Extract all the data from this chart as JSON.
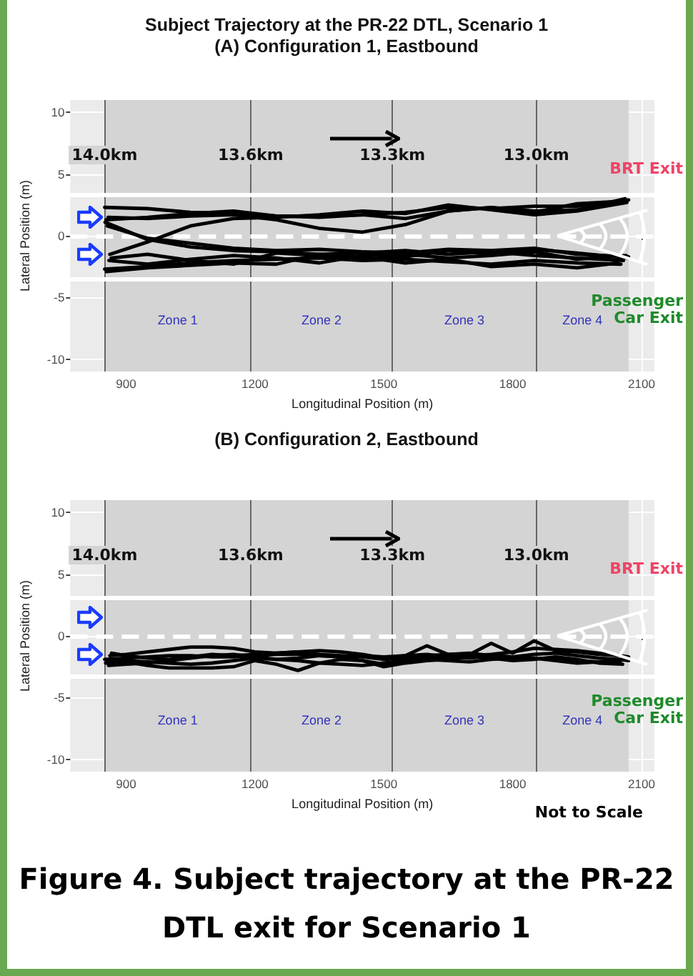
{
  "chart_data": [
    {
      "type": "line",
      "title": "Subject Trajectory at the PR-22 DTL, Scenario 1",
      "subtitle": "(A) Configuration 1, Eastbound",
      "xlabel": "Longitudinal Position (m)",
      "ylabel": "Lateral Position (m)",
      "series": [
        {
          "color": "#000000",
          "x": [
            850,
            950,
            1050,
            1150,
            1250,
            1350,
            1450,
            1550,
            1650,
            1750,
            1850,
            1950,
            2070
          ],
          "values": [
            2.3,
            2.2,
            1.9,
            1.8,
            1.6,
            1.6,
            1.7,
            1.9,
            2.3,
            2.2,
            2.4,
            2.4,
            2.9
          ]
        },
        {
          "color": "#000000",
          "x": [
            853,
            950,
            1050,
            1150,
            1250,
            1350,
            1450,
            1550,
            1650,
            1750,
            1850,
            1950,
            2062
          ],
          "values": [
            1.3,
            1.5,
            1.8,
            2.0,
            1.6,
            1.5,
            1.7,
            1.4,
            2.0,
            2.3,
            2.0,
            2.1,
            3.0
          ]
        },
        {
          "color": "#000000",
          "x": [
            858,
            950,
            1050,
            1150,
            1250,
            1350,
            1450,
            1550,
            1650,
            1750,
            1850,
            1950,
            2054
          ],
          "values": [
            1.5,
            1.4,
            1.6,
            1.7,
            1.3,
            0.6,
            0.3,
            0.9,
            2.0,
            2.3,
            1.9,
            2.6,
            2.8
          ]
        },
        {
          "color": "#000000",
          "x": [
            862,
            950,
            1050,
            1150,
            1250,
            1350,
            1450,
            1550,
            1650,
            1750,
            1850,
            1950,
            2066
          ],
          "values": [
            -1.5,
            -0.5,
            0.8,
            1.4,
            1.5,
            1.7,
            2.0,
            1.8,
            2.5,
            2.1,
            1.7,
            2.0,
            2.7
          ]
        },
        {
          "color": "#000000",
          "x": [
            851,
            950,
            1050,
            1150,
            1250,
            1350,
            1450,
            1550,
            1650,
            1750,
            1850,
            1950,
            2058
          ],
          "values": [
            1.1,
            -0.3,
            -0.9,
            -1.2,
            -1.3,
            -1.5,
            -1.4,
            -1.2,
            -1.5,
            -1.3,
            -1.6,
            -1.8,
            -2.0
          ]
        },
        {
          "color": "#000000",
          "x": [
            856,
            950,
            1050,
            1150,
            1250,
            1350,
            1450,
            1550,
            1650,
            1750,
            1850,
            1950,
            2070
          ],
          "values": [
            0.8,
            -0.2,
            -0.6,
            -1.0,
            -1.2,
            -1.1,
            -1.3,
            -1.4,
            -1.1,
            -1.2,
            -1.0,
            -1.5,
            -1.7
          ]
        },
        {
          "color": "#000000",
          "x": [
            850,
            950,
            1050,
            1150,
            1250,
            1350,
            1450,
            1550,
            1650,
            1750,
            1850,
            1950,
            2052
          ],
          "values": [
            -2.7,
            -2.5,
            -2.2,
            -2.0,
            -1.9,
            -1.8,
            -2.0,
            -1.9,
            -2.1,
            -2.3,
            -2.0,
            -2.2,
            -2.3
          ]
        },
        {
          "color": "#000000",
          "x": [
            860,
            950,
            1050,
            1150,
            1250,
            1350,
            1450,
            1550,
            1650,
            1750,
            1850,
            1950,
            2064
          ],
          "values": [
            -2.0,
            -2.3,
            -1.9,
            -1.6,
            -1.8,
            -2.2,
            -1.6,
            -1.5,
            -1.8,
            -1.6,
            -1.3,
            -1.9,
            -1.6
          ]
        },
        {
          "color": "#000000",
          "x": [
            854,
            950,
            1050,
            1150,
            1250,
            1350,
            1450,
            1550,
            1650,
            1750,
            1850,
            1950,
            2045
          ],
          "values": [
            -2.9,
            -2.6,
            -2.4,
            -2.2,
            -2.3,
            -1.5,
            -1.7,
            -2.2,
            -1.9,
            -2.5,
            -2.3,
            -2.6,
            -2.2
          ]
        },
        {
          "color": "#000000",
          "x": [
            865,
            950,
            1050,
            1150,
            1250,
            1350,
            1450,
            1550,
            1650,
            1750,
            1850,
            1950,
            2068
          ],
          "values": [
            -1.8,
            -1.5,
            -2.0,
            -2.3,
            -1.4,
            -1.6,
            -1.9,
            -1.7,
            -1.2,
            -1.5,
            -1.1,
            -1.4,
            -1.8
          ]
        }
      ],
      "xlim": [
        770,
        2130
      ],
      "xticks": [
        900,
        1200,
        1500,
        1800,
        2100
      ],
      "ylim": [
        -11,
        11
      ],
      "yticks": [
        -10,
        -5,
        0,
        5,
        10
      ],
      "grid": true,
      "marker": "none",
      "line_style": "solid",
      "bands": [
        {
          "axis": "x",
          "from": 850,
          "to": 1190,
          "label": "Zone 1",
          "color": "#d4d4d4"
        },
        {
          "axis": "x",
          "from": 1190,
          "to": 1520,
          "label": "Zone 2",
          "color": "#d4d4d4"
        },
        {
          "axis": "x",
          "from": 1520,
          "to": 1855,
          "label": "Zone 3",
          "color": "#d4d4d4"
        },
        {
          "axis": "x",
          "from": 1855,
          "to": 2070,
          "label": "Zone 4",
          "color": "#d4d4d4"
        }
      ],
      "ref_lines": [
        {
          "axis": "x",
          "value": 850,
          "label": "14.0km",
          "color": "#666666",
          "line_style": "solid"
        },
        {
          "axis": "x",
          "value": 1190,
          "label": "13.6km",
          "color": "#666666",
          "line_style": "solid"
        },
        {
          "axis": "x",
          "value": 1520,
          "label": "13.3km",
          "color": "#666666",
          "line_style": "solid"
        },
        {
          "axis": "x",
          "value": 1855,
          "label": "13.0km",
          "color": "#666666",
          "line_style": "solid"
        },
        {
          "axis": "y",
          "value": 3.3,
          "color": "#ffffff",
          "line_style": "solid"
        },
        {
          "axis": "y",
          "value": 0,
          "color": "#ffffff",
          "line_style": "dashed"
        },
        {
          "axis": "y",
          "value": -3.5,
          "color": "#ffffff",
          "line_style": "solid"
        }
      ],
      "annotations": [
        "BRT Exit",
        "Passenger Car Exit"
      ]
    },
    {
      "type": "line",
      "title": "(B) Configuration 2, Eastbound",
      "xlabel": "Longitudinal Position (m)",
      "ylabel": "Lateral Position (m)",
      "series": [
        {
          "color": "#000000",
          "x": [
            850,
            900,
            950,
            1000,
            1050,
            1100,
            1150,
            1200,
            1250,
            1300,
            1350,
            1400,
            1450,
            1500,
            1550,
            1600,
            1650,
            1700,
            1750,
            1800,
            1850,
            1900,
            1950,
            2000,
            2050,
            2070
          ],
          "values": [
            -1.9,
            -1.8,
            -1.7,
            -1.6,
            -1.6,
            -1.7,
            -1.7,
            -1.6,
            -1.5,
            -1.5,
            -1.6,
            -1.7,
            -1.6,
            -1.7,
            -1.6,
            -0.8,
            -1.5,
            -1.5,
            -0.6,
            -1.4,
            -0.4,
            -1.2,
            -1.3,
            -1.5,
            -1.6,
            -1.7
          ]
        },
        {
          "color": "#000000",
          "x": [
            856,
            900,
            950,
            1000,
            1050,
            1100,
            1150,
            1200,
            1250,
            1300,
            1350,
            1400,
            1450,
            1500,
            1550,
            1600,
            1650,
            1700,
            1750,
            1800,
            1850,
            1900,
            1950,
            2000,
            2050,
            2062
          ],
          "values": [
            -2.0,
            -2.1,
            -2.4,
            -2.6,
            -2.6,
            -2.6,
            -2.5,
            -2.0,
            -2.3,
            -2.8,
            -2.2,
            -1.9,
            -2.0,
            -2.3,
            -1.9,
            -1.8,
            -1.7,
            -1.8,
            -1.6,
            -1.7,
            -1.8,
            -1.9,
            -2.0,
            -2.1,
            -2.0,
            -1.9
          ]
        },
        {
          "color": "#000000",
          "x": [
            862,
            900,
            950,
            1000,
            1050,
            1100,
            1150,
            1200,
            1250,
            1300,
            1350,
            1400,
            1450,
            1500,
            1550,
            1600,
            1650,
            1700,
            1750,
            1800,
            1850,
            1900,
            1950,
            2000,
            2050,
            2066
          ],
          "values": [
            -1.6,
            -1.5,
            -1.3,
            -1.1,
            -0.9,
            -0.9,
            -1.0,
            -1.3,
            -1.4,
            -1.3,
            -1.2,
            -1.3,
            -1.5,
            -1.8,
            -1.6,
            -1.5,
            -1.7,
            -1.6,
            -1.5,
            -1.3,
            -1.0,
            -1.1,
            -1.2,
            -1.4,
            -1.6,
            -1.8
          ]
        },
        {
          "color": "#000000",
          "x": [
            852,
            900,
            950,
            1000,
            1050,
            1100,
            1150,
            1200,
            1250,
            1300,
            1350,
            1400,
            1450,
            1500,
            1550,
            1600,
            1650,
            1700,
            1750,
            1800,
            1850,
            1900,
            1950,
            2000,
            2040
          ],
          "values": [
            -2.2,
            -2.0,
            -2.1,
            -2.2,
            -2.3,
            -2.2,
            -2.0,
            -1.8,
            -1.9,
            -2.0,
            -2.2,
            -2.3,
            -2.4,
            -2.2,
            -2.0,
            -1.9,
            -2.0,
            -2.1,
            -1.9,
            -1.8,
            -1.8,
            -2.0,
            -2.2,
            -2.1,
            -2.2
          ]
        },
        {
          "color": "#000000",
          "x": [
            866,
            900,
            950,
            1000,
            1050,
            1100,
            1150,
            1200,
            1250,
            1300,
            1350,
            1400,
            1450,
            1500,
            1550,
            1600,
            1650,
            1700,
            1750,
            1800,
            1850,
            1900,
            1950,
            2000,
            2050,
            2070
          ],
          "values": [
            -1.4,
            -1.6,
            -1.8,
            -1.9,
            -1.7,
            -1.5,
            -1.6,
            -1.5,
            -1.4,
            -1.3,
            -1.5,
            -1.6,
            -1.7,
            -1.9,
            -1.8,
            -1.6,
            -1.5,
            -1.4,
            -1.6,
            -1.7,
            -1.5,
            -1.4,
            -1.6,
            -1.8,
            -1.9,
            -2.0
          ]
        },
        {
          "color": "#000000",
          "x": [
            859,
            900,
            950,
            1000,
            1050,
            1100,
            1150,
            1200,
            1250,
            1300,
            1350,
            1400,
            1450,
            1500,
            1550,
            1600,
            1650,
            1700,
            1750,
            1800,
            1850,
            1900,
            1950,
            2000,
            2056
          ],
          "values": [
            -2.4,
            -2.3,
            -2.2,
            -2.0,
            -1.8,
            -1.6,
            -1.5,
            -1.7,
            -1.9,
            -1.8,
            -1.6,
            -1.7,
            -2.0,
            -2.5,
            -2.2,
            -2.0,
            -1.9,
            -1.7,
            -1.8,
            -2.0,
            -1.9,
            -1.7,
            -1.9,
            -2.2,
            -2.3
          ]
        }
      ],
      "xlim": [
        770,
        2130
      ],
      "xticks": [
        900,
        1200,
        1500,
        1800,
        2100
      ],
      "ylim": [
        -11,
        11
      ],
      "yticks": [
        -10,
        -5,
        0,
        5,
        10
      ],
      "grid": true,
      "marker": "none",
      "line_style": "solid",
      "bands": [
        {
          "axis": "x",
          "from": 850,
          "to": 1190,
          "label": "Zone 1",
          "color": "#d4d4d4"
        },
        {
          "axis": "x",
          "from": 1190,
          "to": 1520,
          "label": "Zone 2",
          "color": "#d4d4d4"
        },
        {
          "axis": "x",
          "from": 1520,
          "to": 1855,
          "label": "Zone 3",
          "color": "#d4d4d4"
        },
        {
          "axis": "x",
          "from": 1855,
          "to": 2070,
          "label": "Zone 4",
          "color": "#d4d4d4"
        }
      ],
      "ref_lines": [
        {
          "axis": "x",
          "value": 850,
          "label": "14.0km",
          "color": "#666666",
          "line_style": "solid"
        },
        {
          "axis": "x",
          "value": 1190,
          "label": "13.6km",
          "color": "#666666",
          "line_style": "solid"
        },
        {
          "axis": "x",
          "value": 1520,
          "label": "13.3km",
          "color": "#666666",
          "line_style": "solid"
        },
        {
          "axis": "x",
          "value": 1855,
          "label": "13.0km",
          "color": "#666666",
          "line_style": "solid"
        },
        {
          "axis": "y",
          "value": 3.1,
          "color": "#ffffff",
          "line_style": "solid"
        },
        {
          "axis": "y",
          "value": 0,
          "color": "#ffffff",
          "line_style": "dashed"
        },
        {
          "axis": "y",
          "value": -3.3,
          "color": "#ffffff",
          "line_style": "solid"
        }
      ],
      "annotations": [
        "BRT Exit",
        "Passenger Car Exit",
        "Not to Scale",
        "Figure 4. Subject trajectory at the PR-22 DTL exit for Scenario 1"
      ]
    }
  ]
}
